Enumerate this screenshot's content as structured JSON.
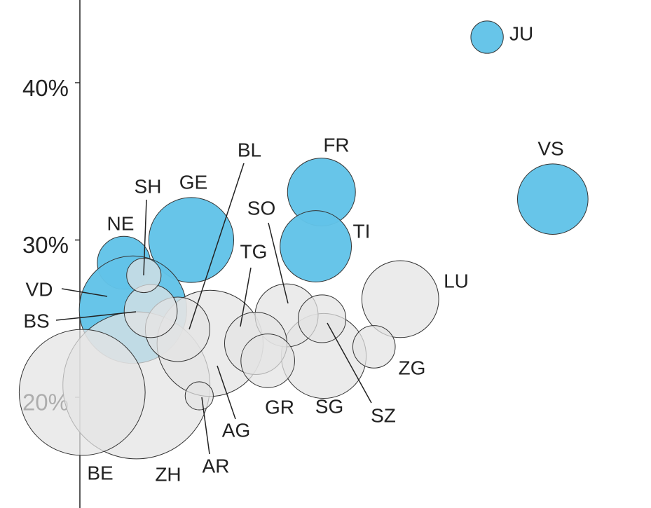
{
  "chart_data": {
    "type": "bubble",
    "ylim": [
      12.96,
      45.26
    ],
    "yticks": [
      {
        "value": 20,
        "label": "20%"
      },
      {
        "value": 30,
        "label": "30%"
      },
      {
        "value": 40,
        "label": "40%"
      }
    ],
    "xlim": [
      0,
      100
    ],
    "points": [
      {
        "label": "JU",
        "x": 71.3,
        "y": 42.9,
        "size": 73,
        "color": "#62c3e8"
      },
      {
        "label": "VS",
        "x": 82.8,
        "y": 32.6,
        "size": 345,
        "color": "#62c3e8"
      },
      {
        "label": "FR",
        "x": 42.3,
        "y": 33.05,
        "size": 320,
        "color": "#62c3e8"
      },
      {
        "label": "TI",
        "x": 41.3,
        "y": 29.6,
        "size": 353,
        "color": "#62c3e8"
      },
      {
        "label": "GE",
        "x": 19.5,
        "y": 30.0,
        "size": 500,
        "color": "#62c3e8"
      },
      {
        "label": "NE",
        "x": 7.7,
        "y": 28.55,
        "size": 195,
        "color": "#62c3e8"
      },
      {
        "label": "VD",
        "x": 9.3,
        "y": 25.57,
        "size": 800,
        "color": "#62c3e8"
      },
      {
        "label": "ZH",
        "x": 9.9,
        "y": 20.76,
        "size": 1500,
        "color": "#e3e3e3"
      },
      {
        "label": "BE",
        "x": 0.4,
        "y": 20.31,
        "size": 1100,
        "color": "#e3e3e3"
      },
      {
        "label": "AG",
        "x": 22.8,
        "y": 23.43,
        "size": 780,
        "color": "#e3e3e3"
      },
      {
        "label": "SG",
        "x": 42.7,
        "y": 22.63,
        "size": 500,
        "color": "#e3e3e3"
      },
      {
        "label": "LU",
        "x": 56.1,
        "y": 26.24,
        "size": 410,
        "color": "#e3e3e3"
      },
      {
        "label": "BL",
        "x": 17.1,
        "y": 24.32,
        "size": 288,
        "color": "#e3e3e3"
      },
      {
        "label": "SO",
        "x": 36.2,
        "y": 25.21,
        "size": 275,
        "color": "#e3e3e3"
      },
      {
        "label": "TG",
        "x": 30.8,
        "y": 23.43,
        "size": 270,
        "color": "#e3e3e3"
      },
      {
        "label": "GR",
        "x": 32.9,
        "y": 22.32,
        "size": 200,
        "color": "#e3e3e3"
      },
      {
        "label": "BS",
        "x": 12.4,
        "y": 25.48,
        "size": 195,
        "color": "#e3e3e3"
      },
      {
        "label": "SZ",
        "x": 42.4,
        "y": 24.99,
        "size": 158,
        "color": "#e3e3e3"
      },
      {
        "label": "ZG",
        "x": 51.5,
        "y": 23.21,
        "size": 125,
        "color": "#e3e3e3"
      },
      {
        "label": "SH",
        "x": 11.2,
        "y": 27.75,
        "size": 82,
        "color": "#e3e3e3"
      },
      {
        "label": "AR",
        "x": 20.9,
        "y": 20.09,
        "size": 55,
        "color": "#e3e3e3"
      }
    ]
  }
}
